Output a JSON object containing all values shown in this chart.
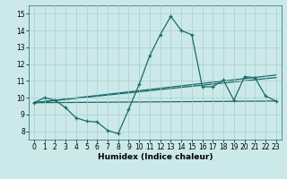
{
  "xlabel": "Humidex (Indice chaleur)",
  "bg_color": "#cce9e9",
  "grid_color": "#aacccc",
  "line_color": "#1a6b6b",
  "xlim": [
    -0.5,
    23.5
  ],
  "ylim": [
    7.5,
    15.5
  ],
  "xticks": [
    0,
    1,
    2,
    3,
    4,
    5,
    6,
    7,
    8,
    9,
    10,
    11,
    12,
    13,
    14,
    15,
    16,
    17,
    18,
    19,
    20,
    21,
    22,
    23
  ],
  "yticks": [
    8,
    9,
    10,
    11,
    12,
    13,
    14,
    15
  ],
  "line1_x": [
    0,
    1,
    2,
    3,
    4,
    5,
    6,
    7,
    8,
    9,
    10,
    11,
    12,
    13,
    14,
    15,
    16,
    17,
    18,
    19,
    20,
    21,
    22,
    23
  ],
  "line1_y": [
    9.7,
    10.0,
    9.85,
    9.4,
    8.8,
    8.6,
    8.55,
    8.05,
    7.85,
    9.3,
    10.8,
    12.5,
    13.75,
    14.85,
    14.0,
    13.75,
    10.65,
    10.65,
    11.05,
    9.85,
    11.25,
    11.2,
    10.1,
    9.8
  ],
  "line2_x": [
    0,
    23
  ],
  "line2_y": [
    9.7,
    9.8
  ],
  "line3_x": [
    0,
    23
  ],
  "line3_y": [
    9.7,
    11.2
  ],
  "line4_x": [
    0,
    23
  ],
  "line4_y": [
    9.7,
    11.35
  ]
}
